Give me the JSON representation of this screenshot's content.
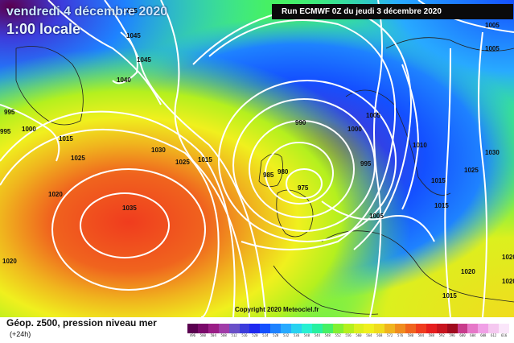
{
  "header": {
    "date": "vendredi 4 décembre 2020",
    "time": "1:00 locale",
    "run": "Run ECMWF 0Z du jeudi 3 décembre 2020",
    "copyright": "Copyright 2020 Meteociel.fr"
  },
  "legend": {
    "title": "Géop. z500, pression niveau mer",
    "subtitle": "(+24h)",
    "ticks": [
      "496",
      "500",
      "504",
      "508",
      "512",
      "516",
      "520",
      "524",
      "528",
      "532",
      "536",
      "540",
      "544",
      "548",
      "552",
      "556",
      "560",
      "564",
      "568",
      "572",
      "576",
      "580",
      "584",
      "588",
      "592",
      "596",
      "600",
      "604",
      "608",
      "612",
      "616"
    ],
    "colors": [
      "#5a0050",
      "#7a0a6a",
      "#9a1e86",
      "#a03ca8",
      "#6a50c8",
      "#3c3cdc",
      "#1e28f0",
      "#1450ff",
      "#1e82ff",
      "#28aaff",
      "#28d2f0",
      "#28f0d2",
      "#28f0a0",
      "#46f064",
      "#82f032",
      "#b4f01e",
      "#dcf01e",
      "#f0f01e",
      "#f0dc1e",
      "#f0b41e",
      "#f08c1e",
      "#f0641e",
      "#f03c1e",
      "#e61e1e",
      "#c8141e",
      "#a00a1e",
      "#c83c8c",
      "#e678c8",
      "#f0a0e6",
      "#f5c8f0",
      "#fae6fa"
    ]
  },
  "isobar_labels": {
    "l1045a": "1045",
    "l1045b": "1045",
    "l1035": "1035",
    "l1040": "1040",
    "l995a": "995",
    "l1000a": "1000",
    "l995b": "995",
    "l1015a": "1015",
    "l1025a": "1025",
    "l1020a": "1020",
    "l1035b": "1035",
    "l1030a": "1030",
    "l1025b": "1025",
    "l1020b": "1020",
    "l1015b": "1015",
    "l990": "990",
    "l985": "985",
    "l980": "980",
    "l975": "975",
    "l1000b": "1000",
    "l995c": "995",
    "l1005a": "1005",
    "l1005b": "1005",
    "l1010": "1010",
    "l1015c": "1015",
    "l1020c": "1020",
    "l1005c": "1005",
    "l1005d": "1005",
    "l1030b": "1030",
    "l1025c": "1025",
    "l1015d": "1015",
    "l1020d": "1020",
    "l1020e": "1020",
    "l1015e": "1015"
  }
}
